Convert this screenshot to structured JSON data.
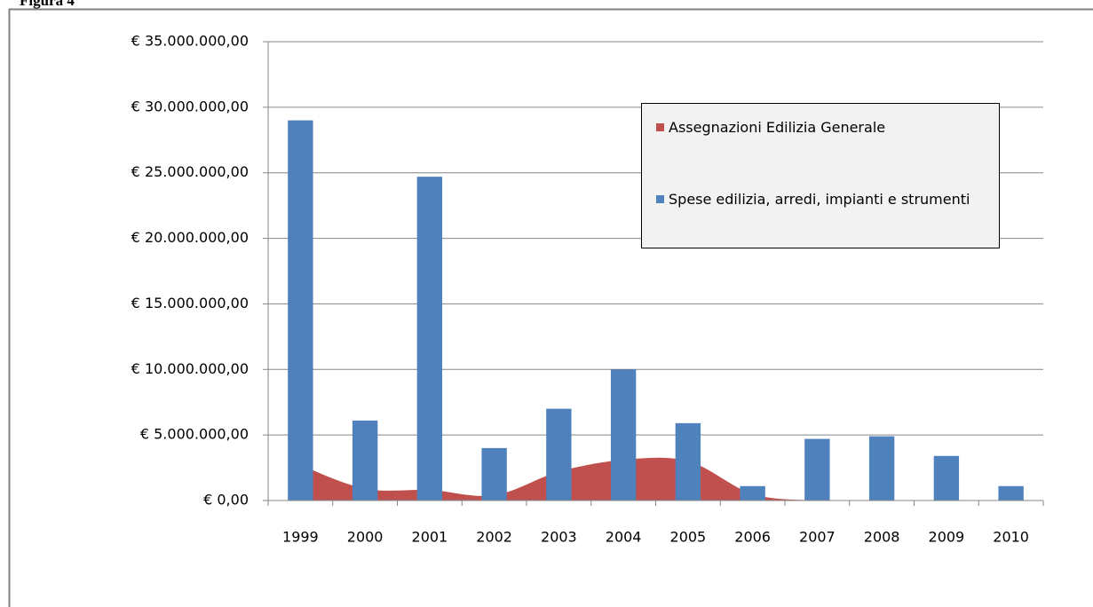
{
  "chart_data": {
    "type": "bar-area",
    "caption": "Figura 4",
    "categories": [
      "1999",
      "2000",
      "2001",
      "2002",
      "2003",
      "2004",
      "2005",
      "2006",
      "2007",
      "2008",
      "2009",
      "2010"
    ],
    "series": [
      {
        "name": "Assegnazioni  Edilizia  Generale",
        "type": "area",
        "color": "#c0504d",
        "values": [
          2700000,
          900000,
          800000,
          400000,
          2200000,
          3100000,
          3000000,
          500000,
          0,
          0,
          0,
          0
        ]
      },
      {
        "name": "Spese edilizia, arredi, impianti e strumenti",
        "type": "bar",
        "color": "#4f81bd",
        "values": [
          29000000,
          6100000,
          24700000,
          4000000,
          7000000,
          10000000,
          5900000,
          1100000,
          4700000,
          4900000,
          3400000,
          1100000
        ]
      }
    ],
    "ylim": [
      0,
      35000000
    ],
    "yticks": [
      {
        "value": 0,
        "label": "€ 0,00"
      },
      {
        "value": 5000000,
        "label": "€ 5.000.000,00"
      },
      {
        "value": 10000000,
        "label": "€ 10.000.000,00"
      },
      {
        "value": 15000000,
        "label": "€ 15.000.000,00"
      },
      {
        "value": 20000000,
        "label": "€ 20.000.000,00"
      },
      {
        "value": 25000000,
        "label": "€ 25.000.000,00"
      },
      {
        "value": 30000000,
        "label": "€ 30.000.000,00"
      },
      {
        "value": 35000000,
        "label": "€ 35.000.000,00"
      }
    ],
    "grid": true,
    "legend": "upper right"
  }
}
